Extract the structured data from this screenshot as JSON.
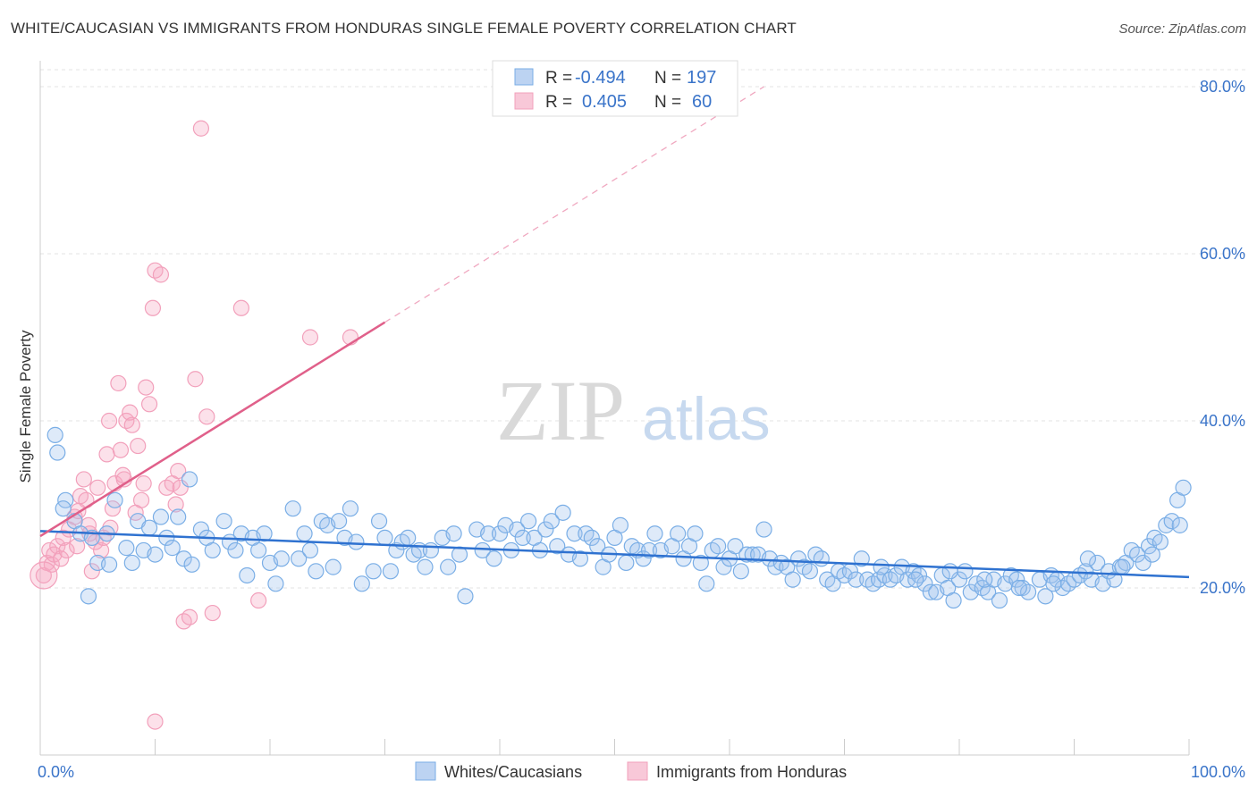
{
  "title": "WHITE/CAUCASIAN VS IMMIGRANTS FROM HONDURAS SINGLE FEMALE POVERTY CORRELATION CHART",
  "source": "Source: ZipAtlas.com",
  "watermark": {
    "part1": "ZIP",
    "part2": "atlas"
  },
  "chart_data": {
    "type": "scatter",
    "ylabel": "Single Female Poverty",
    "xlim": [
      0,
      100
    ],
    "ylim": [
      0,
      80
    ],
    "y_ticks": [
      {
        "value": 20,
        "label": "20.0%"
      },
      {
        "value": 40,
        "label": "40.0%"
      },
      {
        "value": 60,
        "label": "60.0%"
      },
      {
        "value": 80,
        "label": "80.0%"
      }
    ],
    "x_tick_labels": {
      "min": "0.0%",
      "max": "100.0%"
    },
    "legend": [
      {
        "r_label": "R =",
        "r_value": "-0.494",
        "n_label": "N =",
        "n_value": "197"
      },
      {
        "r_label": "R =",
        "r_value": "0.405",
        "n_label": "N =",
        "n_value": "60"
      }
    ],
    "series": [
      {
        "name": "Whites/Caucasians",
        "color": "#7aaee6",
        "fill": "rgba(160,196,238,0.35)",
        "line_color": "#2f72d0",
        "trend": {
          "x0": 0,
          "y0": 26.8,
          "x1": 100,
          "y1": 21.3
        },
        "points": [
          [
            1.3,
            38.3
          ],
          [
            1.5,
            36.2
          ],
          [
            2.2,
            30.5
          ],
          [
            3,
            28
          ],
          [
            3.5,
            26.5
          ],
          [
            4.5,
            26
          ],
          [
            5,
            23
          ],
          [
            5.8,
            26.5
          ],
          [
            2,
            29.5
          ],
          [
            4.2,
            19
          ],
          [
            6,
            22.8
          ],
          [
            6.5,
            30.5
          ],
          [
            7.5,
            24.8
          ],
          [
            8,
            23
          ],
          [
            8.5,
            28
          ],
          [
            9,
            24.5
          ],
          [
            9.5,
            27.2
          ],
          [
            10,
            24
          ],
          [
            10.5,
            28.5
          ],
          [
            11,
            26
          ],
          [
            11.5,
            24.8
          ],
          [
            12,
            28.5
          ],
          [
            12.5,
            23.5
          ],
          [
            13,
            33
          ],
          [
            13.2,
            22.8
          ],
          [
            14,
            27
          ],
          [
            14.5,
            26
          ],
          [
            15,
            24.5
          ],
          [
            16,
            28
          ],
          [
            16.5,
            25.5
          ],
          [
            17,
            24.5
          ],
          [
            17.5,
            26.5
          ],
          [
            18,
            21.5
          ],
          [
            18.5,
            26
          ],
          [
            19,
            24.5
          ],
          [
            19.5,
            26.5
          ],
          [
            20,
            23
          ],
          [
            20.5,
            20.5
          ],
          [
            21,
            23.5
          ],
          [
            22,
            29.5
          ],
          [
            22.5,
            23.5
          ],
          [
            23,
            26.5
          ],
          [
            23.5,
            24.5
          ],
          [
            24,
            22
          ],
          [
            24.5,
            28
          ],
          [
            25,
            27.5
          ],
          [
            25.5,
            22.5
          ],
          [
            26,
            28
          ],
          [
            26.5,
            26
          ],
          [
            27,
            29.5
          ],
          [
            27.5,
            25.5
          ],
          [
            28,
            20.5
          ],
          [
            29,
            22
          ],
          [
            29.5,
            28
          ],
          [
            30,
            26
          ],
          [
            30.5,
            22
          ],
          [
            31,
            24.5
          ],
          [
            31.5,
            25.5
          ],
          [
            32,
            26
          ],
          [
            32.5,
            24
          ],
          [
            33,
            24.5
          ],
          [
            33.5,
            22.5
          ],
          [
            34,
            24.5
          ],
          [
            35,
            26
          ],
          [
            35.5,
            22.5
          ],
          [
            36,
            26.5
          ],
          [
            36.5,
            24
          ],
          [
            37,
            19
          ],
          [
            38,
            27
          ],
          [
            38.5,
            24.5
          ],
          [
            39,
            26.5
          ],
          [
            39.5,
            23.5
          ],
          [
            40,
            26.5
          ],
          [
            40.5,
            27.5
          ],
          [
            41,
            24.5
          ],
          [
            41.5,
            27
          ],
          [
            42,
            26
          ],
          [
            42.5,
            28
          ],
          [
            43,
            26
          ],
          [
            43.5,
            24.5
          ],
          [
            44,
            27
          ],
          [
            44.5,
            28
          ],
          [
            45,
            25
          ],
          [
            45.5,
            29
          ],
          [
            46,
            24
          ],
          [
            46.5,
            26.5
          ],
          [
            47,
            23.5
          ],
          [
            47.5,
            26.5
          ],
          [
            48,
            26
          ],
          [
            48.5,
            25
          ],
          [
            49,
            22.5
          ],
          [
            49.5,
            24
          ],
          [
            50,
            26
          ],
          [
            50.5,
            27.5
          ],
          [
            51,
            23
          ],
          [
            51.5,
            25
          ],
          [
            52,
            24.5
          ],
          [
            52.5,
            23.5
          ],
          [
            53,
            24.5
          ],
          [
            53.5,
            26.5
          ],
          [
            54,
            24.5
          ],
          [
            55,
            25
          ],
          [
            55.5,
            26.5
          ],
          [
            56,
            23.5
          ],
          [
            56.5,
            25
          ],
          [
            57,
            26.5
          ],
          [
            57.5,
            23
          ],
          [
            58,
            20.5
          ],
          [
            58.5,
            24.5
          ],
          [
            59,
            25
          ],
          [
            59.5,
            22.5
          ],
          [
            60,
            23.5
          ],
          [
            60.5,
            25
          ],
          [
            61,
            22
          ],
          [
            61.5,
            24
          ],
          [
            62,
            24
          ],
          [
            62.5,
            24
          ],
          [
            63,
            27
          ],
          [
            63.5,
            23.5
          ],
          [
            64,
            22.5
          ],
          [
            64.5,
            23
          ],
          [
            65,
            22.5
          ],
          [
            65.5,
            21
          ],
          [
            66,
            23.5
          ],
          [
            66.5,
            22.5
          ],
          [
            67,
            22
          ],
          [
            67.5,
            24
          ],
          [
            68,
            23.5
          ],
          [
            68.5,
            21
          ],
          [
            69,
            20.5
          ],
          [
            69.5,
            22
          ],
          [
            70,
            21.5
          ],
          [
            70.5,
            22
          ],
          [
            71,
            21
          ],
          [
            71.5,
            23.5
          ],
          [
            72,
            21
          ],
          [
            72.5,
            20.5
          ],
          [
            73,
            21
          ],
          [
            73.5,
            21.5
          ],
          [
            74,
            21
          ],
          [
            74.5,
            21.5
          ],
          [
            75,
            22.5
          ],
          [
            75.5,
            21
          ],
          [
            76,
            22
          ],
          [
            76.5,
            21.5
          ],
          [
            77,
            20.5
          ],
          [
            77.5,
            19.5
          ],
          [
            78,
            19.5
          ],
          [
            78.5,
            21.5
          ],
          [
            79,
            20
          ],
          [
            79.5,
            18.5
          ],
          [
            80,
            21
          ],
          [
            80.5,
            22
          ],
          [
            81,
            19.5
          ],
          [
            81.5,
            20.5
          ],
          [
            82,
            20
          ],
          [
            82.5,
            19.5
          ],
          [
            83,
            21
          ],
          [
            83.5,
            18.5
          ],
          [
            84,
            20.5
          ],
          [
            84.5,
            21.5
          ],
          [
            85,
            21
          ],
          [
            85.5,
            20
          ],
          [
            86,
            19.5
          ],
          [
            87,
            21
          ],
          [
            87.5,
            19
          ],
          [
            88,
            21.5
          ],
          [
            88.5,
            21
          ],
          [
            89,
            20
          ],
          [
            89.5,
            20.5
          ],
          [
            90,
            21
          ],
          [
            90.5,
            21.5
          ],
          [
            91,
            22
          ],
          [
            91.5,
            21
          ],
          [
            92,
            23
          ],
          [
            92.5,
            20.5
          ],
          [
            93,
            22
          ],
          [
            93.5,
            21
          ],
          [
            94,
            22.5
          ],
          [
            94.5,
            23
          ],
          [
            95,
            24.5
          ],
          [
            95.5,
            24
          ],
          [
            96,
            23
          ],
          [
            96.5,
            25
          ],
          [
            97,
            26
          ],
          [
            97.5,
            25.5
          ],
          [
            98,
            27.5
          ],
          [
            98.5,
            28
          ],
          [
            99,
            30.5
          ],
          [
            99.5,
            32
          ],
          [
            99.2,
            27.5
          ],
          [
            96.8,
            24
          ],
          [
            94.2,
            22.5
          ],
          [
            91.2,
            23.5
          ],
          [
            88.2,
            20.5
          ],
          [
            85.2,
            20
          ],
          [
            82.2,
            21
          ],
          [
            79.2,
            22
          ],
          [
            76.2,
            21
          ],
          [
            73.2,
            22.5
          ]
        ]
      },
      {
        "name": "Immigrants from Honduras",
        "color": "#f2a0bb",
        "fill": "rgba(245,170,196,0.35)",
        "line_color": "#e0608a",
        "trend": {
          "x0": 0,
          "y0": 26.2,
          "x1": 30,
          "y1": 51.8
        },
        "trend_dashed_to": {
          "x": 63,
          "y": 80
        },
        "points": [
          [
            0.3,
            21.5
          ],
          [
            0.6,
            23
          ],
          [
            0.8,
            24.5
          ],
          [
            1,
            22.8
          ],
          [
            1.2,
            24
          ],
          [
            1.5,
            25
          ],
          [
            1.8,
            23.5
          ],
          [
            2,
            26
          ],
          [
            2.3,
            24.5
          ],
          [
            2.5,
            27
          ],
          [
            3,
            28.5
          ],
          [
            3.2,
            25
          ],
          [
            3.5,
            31
          ],
          [
            3.8,
            33
          ],
          [
            4,
            30.5
          ],
          [
            4.3,
            26.5
          ],
          [
            4.5,
            22
          ],
          [
            4.8,
            25.5
          ],
          [
            5,
            32
          ],
          [
            5.3,
            24.5
          ],
          [
            5.5,
            26
          ],
          [
            5.8,
            36
          ],
          [
            6,
            40
          ],
          [
            6.3,
            29.5
          ],
          [
            6.5,
            32.5
          ],
          [
            6.8,
            44.5
          ],
          [
            7,
            36.5
          ],
          [
            7.3,
            33
          ],
          [
            7.5,
            40
          ],
          [
            7.8,
            41
          ],
          [
            8,
            39.5
          ],
          [
            8.3,
            29
          ],
          [
            8.5,
            37
          ],
          [
            8.8,
            30.5
          ],
          [
            9,
            32.5
          ],
          [
            9.2,
            44
          ],
          [
            9.5,
            42
          ],
          [
            9.8,
            53.5
          ],
          [
            10,
            58
          ],
          [
            10.5,
            57.5
          ],
          [
            11,
            32
          ],
          [
            11.5,
            32.5
          ],
          [
            11.8,
            30
          ],
          [
            12,
            34
          ],
          [
            12.5,
            16
          ],
          [
            13,
            16.5
          ],
          [
            13.5,
            45
          ],
          [
            14,
            75
          ],
          [
            14.5,
            40.5
          ],
          [
            15,
            17
          ],
          [
            17.5,
            53.5
          ],
          [
            19,
            18.5
          ],
          [
            23.5,
            50
          ],
          [
            27,
            50
          ],
          [
            10,
            4
          ],
          [
            4.2,
            27.5
          ],
          [
            3.3,
            29.2
          ],
          [
            12.2,
            32
          ],
          [
            7.2,
            33.5
          ],
          [
            6.1,
            27.2
          ]
        ]
      }
    ],
    "x_minor_ticks": [
      0,
      10,
      20,
      30,
      40,
      50,
      60,
      70,
      80,
      90,
      100
    ]
  }
}
